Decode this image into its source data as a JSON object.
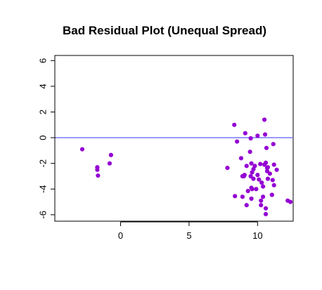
{
  "chart_data": {
    "type": "scatter",
    "title": "Bad Residual Plot (Unequal Spread)",
    "xlabel": "",
    "ylabel": "",
    "xlim": [
      -4.8,
      12.6
    ],
    "ylim": [
      -6.5,
      6.4
    ],
    "xticks": [
      0,
      5,
      10
    ],
    "yticks": [
      -6,
      -4,
      -2,
      0,
      2,
      4,
      6
    ],
    "reference_line": {
      "y": 0,
      "color": "#6b6bff"
    },
    "point_color": "#9400d3",
    "grid": false,
    "series": [
      {
        "x": [
          -2.8,
          -1.7,
          -1.7,
          -1.65,
          -0.8,
          -0.7,
          8.3,
          8.5,
          8.9,
          9.05,
          9.1,
          9.5,
          10.0,
          10.5,
          10.55,
          10.65,
          11.15,
          9.45,
          9.55,
          9.2,
          9.8,
          9.7,
          10.2,
          10.6,
          10.7,
          9.6,
          10.0,
          10.5,
          10.9,
          11.2,
          7.8,
          10.7,
          8.8,
          11.4,
          9.0,
          9.5,
          9.7,
          10.1,
          10.3,
          10.75,
          11.1,
          11.2,
          9.55,
          9.9,
          10.4,
          8.35,
          9.3,
          9.6,
          10.4,
          11.05,
          8.9,
          9.55,
          10.25,
          10.6,
          12.2,
          12.4,
          9.2,
          10.25,
          10.6,
          10.75
        ],
        "y": [
          -0.9,
          -2.3,
          -2.5,
          -2.95,
          -2.0,
          -1.35,
          1.0,
          -0.3,
          -3.0,
          -2.9,
          0.35,
          -0.05,
          0.15,
          1.4,
          0.25,
          -0.8,
          -0.5,
          -1.1,
          -2.0,
          -2.2,
          -2.2,
          -2.45,
          -2.05,
          -1.95,
          -2.35,
          -2.7,
          -2.9,
          -2.1,
          -2.8,
          -2.1,
          -2.35,
          -2.6,
          -1.6,
          -2.5,
          -3.0,
          -3.0,
          -3.2,
          -3.25,
          -3.5,
          -3.2,
          -3.3,
          -3.7,
          -3.9,
          -4.0,
          -3.8,
          -4.55,
          -4.15,
          -4.0,
          -4.6,
          -4.45,
          -4.6,
          -4.75,
          -4.9,
          -5.5,
          -4.9,
          -5.0,
          -5.25,
          -5.25,
          -5.95,
          -2.3
        ]
      }
    ]
  }
}
